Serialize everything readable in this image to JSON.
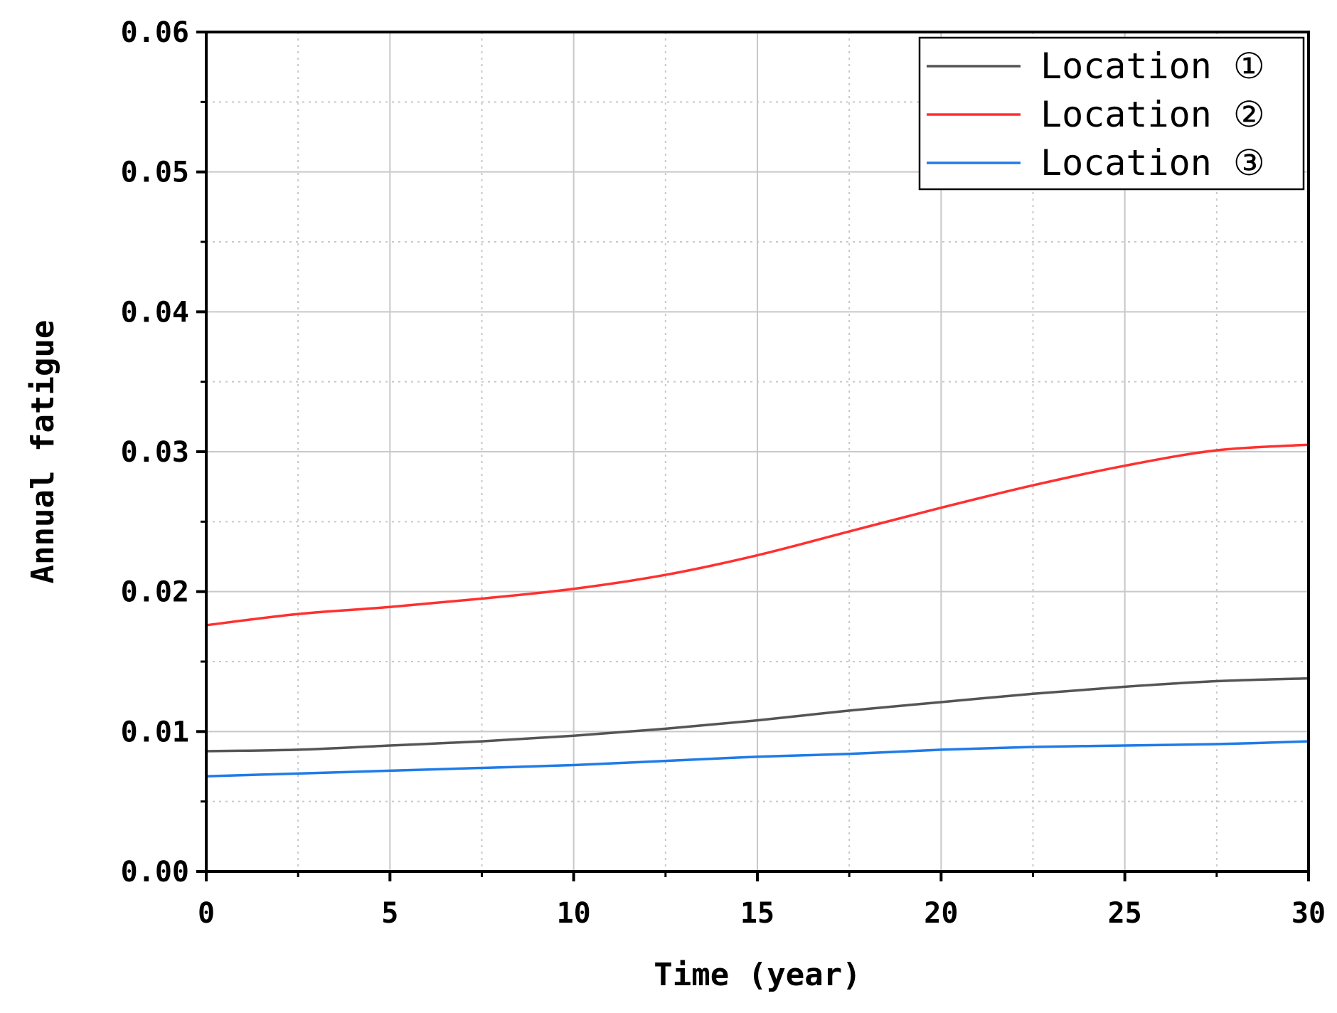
{
  "chart_data": {
    "type": "line",
    "title": "",
    "xlabel": "Time (year)",
    "ylabel": "Annual fatigue",
    "xlim": [
      0,
      30
    ],
    "ylim": [
      0,
      0.06
    ],
    "x_ticks": [
      0,
      5,
      10,
      15,
      20,
      25,
      30
    ],
    "x_tick_labels": [
      "0",
      "5",
      "10",
      "15",
      "20",
      "25",
      "30"
    ],
    "y_ticks": [
      0,
      0.01,
      0.02,
      0.03,
      0.04,
      0.05,
      0.06
    ],
    "y_tick_labels": [
      "0.00",
      "0.01",
      "0.02",
      "0.03",
      "0.04",
      "0.05",
      "0.06"
    ],
    "grid": true,
    "legend_position": "top-right",
    "x": [
      0,
      2.5,
      5,
      7.5,
      10,
      12.5,
      15,
      17.5,
      20,
      22.5,
      25,
      27.5,
      30
    ],
    "series": [
      {
        "name": "Location ①",
        "color": "#555555",
        "values": [
          0.0086,
          0.0087,
          0.009,
          0.0093,
          0.0097,
          0.0102,
          0.0108,
          0.0115,
          0.0121,
          0.0127,
          0.0132,
          0.0136,
          0.0138
        ]
      },
      {
        "name": "Location ②",
        "color": "#ff3030",
        "values": [
          0.0176,
          0.0184,
          0.0189,
          0.0195,
          0.0202,
          0.0212,
          0.0226,
          0.0243,
          0.026,
          0.0276,
          0.029,
          0.0301,
          0.0305
        ]
      },
      {
        "name": "Location ③",
        "color": "#1f7be8",
        "values": [
          0.0068,
          0.007,
          0.0072,
          0.0074,
          0.0076,
          0.0079,
          0.0082,
          0.0084,
          0.0087,
          0.0089,
          0.009,
          0.0091,
          0.0093
        ]
      }
    ]
  }
}
